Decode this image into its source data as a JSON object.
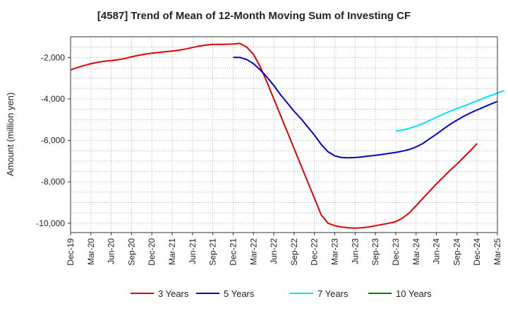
{
  "chart_data": {
    "type": "line",
    "title": "[4587]  Trend of Mean of 12-Month Moving Sum of Investing CF",
    "xlabel": "",
    "ylabel": "Amount (million yen)",
    "ylim": [
      -10450,
      -1000
    ],
    "yticks": [
      -2000,
      -4000,
      -6000,
      -8000,
      -10000
    ],
    "ytick_labels": [
      "-2,000",
      "-4,000",
      "-6,000",
      "-8,000",
      "-10,000"
    ],
    "xticks": [
      "Dec-19",
      "Mar-20",
      "Jun-20",
      "Sep-20",
      "Dec-20",
      "Mar-21",
      "Jun-21",
      "Sep-21",
      "Dec-21",
      "Mar-22",
      "Jun-22",
      "Sep-22",
      "Dec-22",
      "Mar-23",
      "Jun-23",
      "Sep-23",
      "Dec-23",
      "Mar-24",
      "Jun-24",
      "Sep-24",
      "Dec-24",
      "Mar-25"
    ],
    "grid": true,
    "legend_position": "bottom",
    "series": [
      {
        "name": "3 Years",
        "color": "#e00000",
        "start_index": 0,
        "values": [
          -2600,
          -2490,
          -2390,
          -2300,
          -2230,
          -2180,
          -2150,
          -2110,
          -2050,
          -1970,
          -1900,
          -1840,
          -1790,
          -1760,
          -1720,
          -1690,
          -1650,
          -1590,
          -1520,
          -1450,
          -1400,
          -1370,
          -1370,
          -1360,
          -1350,
          -1320,
          -1500,
          -1850,
          -2450,
          -3200,
          -4000,
          -4800,
          -5600,
          -6400,
          -7200,
          -8000,
          -8800,
          -9600,
          -10000,
          -10120,
          -10180,
          -10220,
          -10240,
          -10220,
          -10180,
          -10120,
          -10060,
          -10000,
          -9920,
          -9750,
          -9500,
          -9150,
          -8800,
          -8450,
          -8100,
          -7780,
          -7450,
          -7150,
          -6830,
          -6500,
          -6150
        ]
      },
      {
        "name": "5 Years",
        "color": "#0000cc",
        "start_index": 24,
        "values": [
          -2000,
          -2000,
          -2100,
          -2300,
          -2600,
          -2950,
          -3350,
          -3800,
          -4200,
          -4600,
          -4950,
          -5350,
          -5750,
          -6200,
          -6550,
          -6750,
          -6830,
          -6840,
          -6830,
          -6800,
          -6760,
          -6720,
          -6680,
          -6630,
          -6580,
          -6520,
          -6440,
          -6320,
          -6150,
          -5920,
          -5700,
          -5460,
          -5230,
          -5030,
          -4840,
          -4680,
          -4530,
          -4390,
          -4250,
          -4120
        ]
      },
      {
        "name": "7 Years",
        "color": "#00e5ee",
        "start_index": 48,
        "values": [
          -5550,
          -5500,
          -5420,
          -5320,
          -5190,
          -5040,
          -4890,
          -4740,
          -4600,
          -4470,
          -4350,
          -4220,
          -4090,
          -3960,
          -3840,
          -3720,
          -3600
        ]
      },
      {
        "name": "10 Years",
        "color": "#008000",
        "start_index": 0,
        "values": []
      }
    ]
  }
}
